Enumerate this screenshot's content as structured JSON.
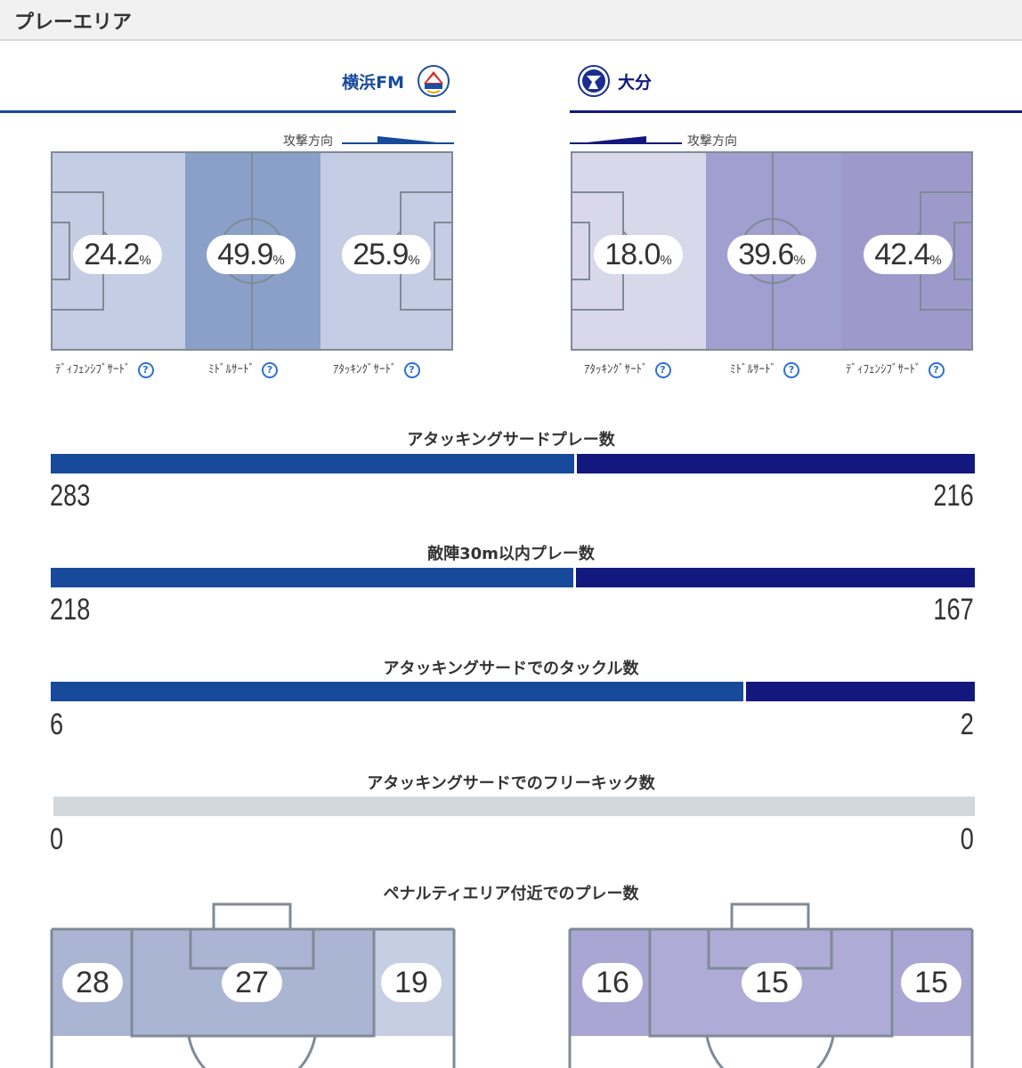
{
  "page_title": "プレーエリア",
  "home": {
    "name": "横浜FM",
    "emblem": "yokohama-fm-emblem",
    "attack_direction_label": "攻撃方向",
    "zones": [
      {
        "label": "ﾃﾞｨﾌｪﾝｼﾌﾞｻｰﾄﾞ",
        "value": "24.2",
        "unit": "%",
        "color": "#c4cde3"
      },
      {
        "label": "ﾐﾄﾞﾙｻｰﾄﾞ",
        "value": "49.9",
        "unit": "%",
        "color": "#8aa0c9"
      },
      {
        "label": "ｱﾀｯｷﾝｸﾞｻｰﾄﾞ",
        "value": "25.9",
        "unit": "%",
        "color": "#c4cde3"
      }
    ],
    "color": "#174a9a"
  },
  "away": {
    "name": "大分",
    "emblem": "oita-emblem",
    "attack_direction_label": "攻撃方向",
    "zones": [
      {
        "label": "ｱﾀｯｷﾝｸﾞｻｰﾄﾞ",
        "value": "18.0",
        "unit": "%",
        "color": "#d9d8ea"
      },
      {
        "label": "ﾐﾄﾞﾙｻｰﾄﾞ",
        "value": "39.6",
        "unit": "%",
        "color": "#a09fd0"
      },
      {
        "label": "ﾃﾞｨﾌｪﾝｼﾌﾞｻｰﾄﾞ",
        "value": "42.4",
        "unit": "%",
        "color": "#9d9acb"
      }
    ],
    "color": "#12187d"
  },
  "help_icon": "question-circle-icon",
  "help_glyph": "?",
  "stats": [
    {
      "title": "アタッキングサードプレー数",
      "home": "283",
      "away": "216",
      "home_value": 283,
      "away_value": 216
    },
    {
      "title": "敵陣30m以内プレー数",
      "home": "218",
      "away": "167",
      "home_value": 218,
      "away_value": 167
    },
    {
      "title": "アタッキングサードでのタックル数",
      "home": "6",
      "away": "2",
      "home_value": 6,
      "away_value": 2
    },
    {
      "title": "アタッキングサードでのフリーキック数",
      "home": "0",
      "away": "0",
      "home_value": 0,
      "away_value": 0
    }
  ],
  "penalty_area": {
    "title": "ペナルティエリア付近でのプレー数",
    "home": [
      "28",
      "27",
      "19"
    ],
    "away": [
      "16",
      "15",
      "15"
    ]
  }
}
